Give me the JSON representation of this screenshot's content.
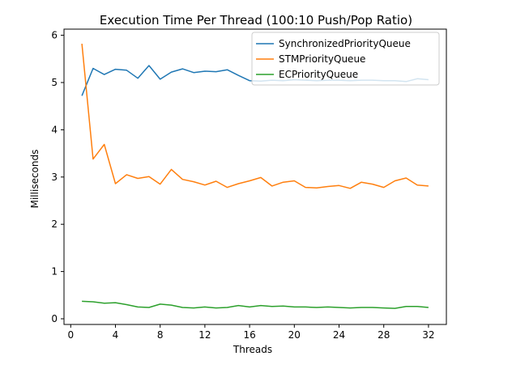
{
  "chart_data": {
    "type": "line",
    "title": "Execution Time Per Thread (100:10 Push/Pop Ratio)",
    "xlabel": "Threads",
    "ylabel": "Milliseconds",
    "xlim": [
      -0.6,
      33.6
    ],
    "ylim": [
      -0.12,
      6.13
    ],
    "xticks": [
      0,
      4,
      8,
      12,
      16,
      20,
      24,
      28,
      32
    ],
    "yticks": [
      0,
      1,
      2,
      3,
      4,
      5,
      6
    ],
    "grid": false,
    "legend_position": "top-right",
    "x": [
      1,
      2,
      3,
      4,
      5,
      6,
      7,
      8,
      9,
      10,
      11,
      12,
      13,
      14,
      15,
      16,
      17,
      18,
      19,
      20,
      21,
      22,
      23,
      24,
      25,
      26,
      27,
      28,
      29,
      30,
      31,
      32
    ],
    "series": [
      {
        "name": "SynchronizedPriorityQueue",
        "color": "#1f77b4",
        "values": [
          4.72,
          5.3,
          5.17,
          5.28,
          5.26,
          5.09,
          5.36,
          5.07,
          5.22,
          5.29,
          5.21,
          5.24,
          5.23,
          5.27,
          5.15,
          5.04,
          5.03,
          5.05,
          5.04,
          5.06,
          5.05,
          5.04,
          5.05,
          5.05,
          5.04,
          5.05,
          5.05,
          5.04,
          5.04,
          5.02,
          5.08,
          5.06
        ]
      },
      {
        "name": "STMPriorityQueue",
        "color": "#ff7f0e",
        "values": [
          5.82,
          3.38,
          3.69,
          2.86,
          3.05,
          2.97,
          3.01,
          2.85,
          3.16,
          2.95,
          2.9,
          2.83,
          2.91,
          2.78,
          2.86,
          2.92,
          2.99,
          2.81,
          2.89,
          2.92,
          2.78,
          2.77,
          2.8,
          2.82,
          2.76,
          2.89,
          2.85,
          2.78,
          2.92,
          2.98,
          2.83,
          2.81
        ]
      },
      {
        "name": "ECPriorityQueue",
        "color": "#2ca02c",
        "values": [
          0.37,
          0.36,
          0.33,
          0.34,
          0.3,
          0.25,
          0.24,
          0.31,
          0.29,
          0.24,
          0.23,
          0.25,
          0.23,
          0.24,
          0.28,
          0.25,
          0.28,
          0.26,
          0.27,
          0.25,
          0.25,
          0.24,
          0.25,
          0.24,
          0.23,
          0.24,
          0.24,
          0.23,
          0.22,
          0.26,
          0.26,
          0.24
        ]
      }
    ]
  }
}
